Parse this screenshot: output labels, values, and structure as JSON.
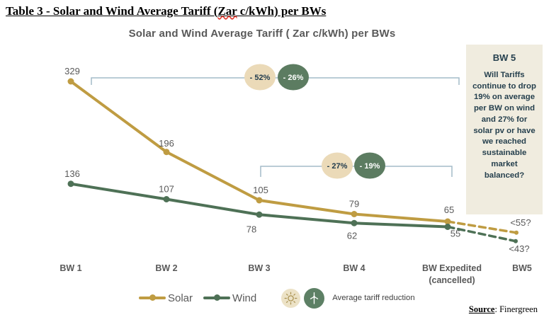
{
  "document": {
    "heading_pre": "Table 3 - Solar and Wind Average Tariff (",
    "heading_misspelled_word": "Zar",
    "heading_post": " c/kWh) per BWs",
    "source_label": "Source",
    "source_rest": ": Finergreen"
  },
  "chart_data": {
    "type": "line",
    "title": "Solar and Wind Average Tariff (  Zar c/kWh) per BWs",
    "categories": [
      "BW 1",
      "BW 2",
      "BW 3",
      "BW 4",
      "BW Expedited\n(cancelled)",
      "BW5"
    ],
    "series": [
      {
        "name": "Solar",
        "color": "#bf9c42",
        "values": [
          329,
          196,
          105,
          79,
          65
        ],
        "projection": {
          "label": "<55?",
          "dashed": true
        }
      },
      {
        "name": "Wind",
        "color": "#4e7156",
        "values": [
          136,
          107,
          78,
          62,
          55
        ],
        "projection": {
          "label": "<43?",
          "dashed": true
        }
      }
    ],
    "annotations": [
      {
        "type": "bracket",
        "from_category": "BW 1",
        "to_category": "BW Expedited (cancelled)",
        "badges": [
          {
            "label": "- 52%",
            "style": "cream"
          },
          {
            "label": "- 26%",
            "style": "green"
          }
        ]
      },
      {
        "type": "bracket",
        "from_category": "BW 3",
        "to_category": "BW Expedited (cancelled)",
        "badges": [
          {
            "label": "- 27%",
            "style": "cream"
          },
          {
            "label": "- 19%",
            "style": "green"
          }
        ]
      }
    ],
    "legend": {
      "items": [
        "Solar",
        "Wind"
      ],
      "reduction_caption": "Average tariff reduction"
    },
    "callout": {
      "title": "BW 5",
      "body": "Will Tariffs continue to drop 19% on average per BW on wind and 27% for solar pv or have we reached sustainable market balanced?"
    },
    "y_axis_visible": false,
    "gridlines": false,
    "value_labels_visible": true,
    "colors": {
      "solar": "#bf9c42",
      "wind": "#4e7156",
      "badge_cream_bg": "#ebdab8",
      "badge_cream_text": "#1f3a4c",
      "badge_green_bg": "#5c7c61",
      "badge_green_text": "#ffffff",
      "bracket": "#a4bbc9",
      "label_text": "#595959",
      "callout_bg": "#f0ecdf",
      "callout_text": "#26404e",
      "sun_circle_bg": "#ece2c6",
      "sun_icon": "#a8904f",
      "turbine_circle_bg": "#5d8065",
      "turbine_icon": "#ffffff"
    }
  }
}
